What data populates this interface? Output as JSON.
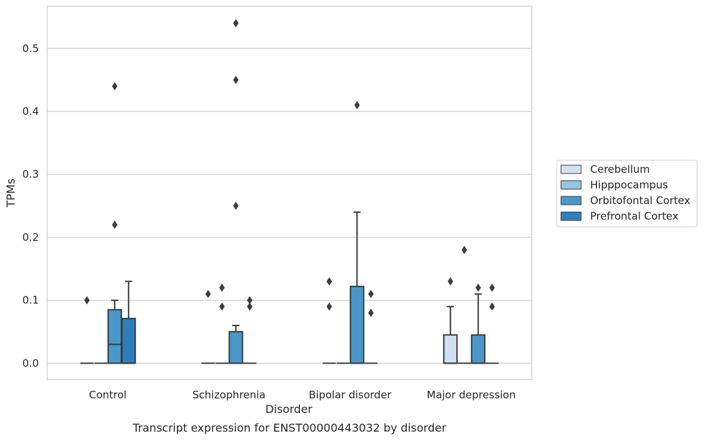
{
  "chart_data": {
    "type": "box",
    "title": "",
    "xlabel": "Disorder",
    "ylabel": "TPMs",
    "caption": "Transcript expression for ENST00000443032 by disorder",
    "categories": [
      "Control",
      "Schizophrenia",
      "Bipolar disorder",
      "Major depression"
    ],
    "ylim": [
      -0.026,
      0.567
    ],
    "yticks": [
      "0.0",
      "0.1",
      "0.2",
      "0.3",
      "0.4",
      "0.5"
    ],
    "grid": true,
    "legend_position": "right",
    "series": [
      {
        "name": "Cerebellum",
        "color": "#d0e1f2",
        "boxes": [
          {
            "q1": 0,
            "median": 0,
            "q3": 0,
            "whisker_low": 0,
            "whisker_high": 0,
            "outliers": [
              0.1
            ]
          },
          {
            "q1": 0,
            "median": 0,
            "q3": 0,
            "whisker_low": 0,
            "whisker_high": 0,
            "outliers": [
              0.11
            ]
          },
          {
            "q1": 0,
            "median": 0,
            "q3": 0,
            "whisker_low": 0,
            "whisker_high": 0,
            "outliers": [
              0.13,
              0.09
            ]
          },
          {
            "q1": 0,
            "median": 0,
            "q3": 0.045,
            "whisker_low": 0,
            "whisker_high": 0.09,
            "outliers": [
              0.13
            ]
          }
        ]
      },
      {
        "name": "Hipppocampus",
        "color": "#94c4df",
        "boxes": [
          {
            "q1": 0,
            "median": 0,
            "q3": 0,
            "whisker_low": 0,
            "whisker_high": 0,
            "outliers": []
          },
          {
            "q1": 0,
            "median": 0,
            "q3": 0,
            "whisker_low": 0,
            "whisker_high": 0,
            "outliers": [
              0.12,
              0.09
            ]
          },
          {
            "q1": 0,
            "median": 0,
            "q3": 0,
            "whisker_low": 0,
            "whisker_high": 0,
            "outliers": []
          },
          {
            "q1": 0,
            "median": 0,
            "q3": 0,
            "whisker_low": 0,
            "whisker_high": 0,
            "outliers": [
              0.18
            ]
          }
        ]
      },
      {
        "name": "Orbitofontal Cortex",
        "color": "#4a98c9",
        "boxes": [
          {
            "q1": 0,
            "median": 0.03,
            "q3": 0.085,
            "whisker_low": 0,
            "whisker_high": 0.1,
            "outliers": [
              0.44,
              0.22
            ]
          },
          {
            "q1": 0,
            "median": 0,
            "q3": 0.05,
            "whisker_low": 0,
            "whisker_high": 0.06,
            "outliers": [
              0.54,
              0.45,
              0.25
            ]
          },
          {
            "q1": 0,
            "median": 0,
            "q3": 0.122,
            "whisker_low": 0,
            "whisker_high": 0.24,
            "outliers": [
              0.41
            ]
          },
          {
            "q1": 0,
            "median": 0,
            "q3": 0.045,
            "whisker_low": 0,
            "whisker_high": 0.11,
            "outliers": [
              0.12
            ]
          }
        ]
      },
      {
        "name": "Prefrontal Cortex",
        "color": "#2e7ebc",
        "boxes": [
          {
            "q1": 0,
            "median": 0,
            "q3": 0.071,
            "whisker_low": 0,
            "whisker_high": 0.13,
            "outliers": []
          },
          {
            "q1": 0,
            "median": 0,
            "q3": 0,
            "whisker_low": 0,
            "whisker_high": 0,
            "outliers": [
              0.1,
              0.09
            ]
          },
          {
            "q1": 0,
            "median": 0,
            "q3": 0,
            "whisker_low": 0,
            "whisker_high": 0,
            "outliers": [
              0.11,
              0.08
            ]
          },
          {
            "q1": 0,
            "median": 0,
            "q3": 0,
            "whisker_low": 0,
            "whisker_high": 0,
            "outliers": [
              0.12,
              0.09
            ]
          }
        ]
      }
    ]
  }
}
